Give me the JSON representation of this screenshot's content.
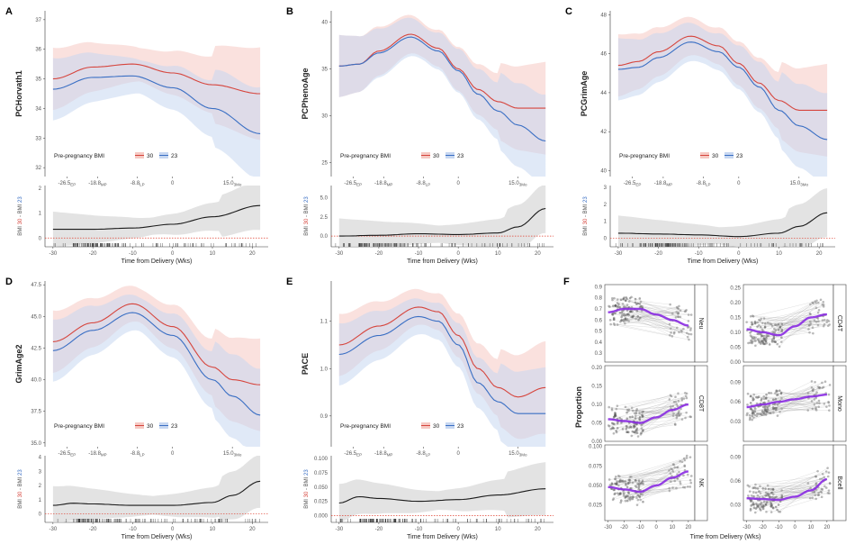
{
  "panels": {
    "A": {
      "label": "A",
      "ylabel": "PCHorvath1",
      "ylim": [
        31.7,
        37.3
      ],
      "yticks": [
        "32",
        "33",
        "34",
        "35",
        "36",
        "37"
      ],
      "diff_ylim": [
        -0.35,
        2.1
      ],
      "diff_yticks": [
        "0",
        "1",
        "2"
      ]
    },
    "B": {
      "label": "B",
      "ylabel": "PCPhenoAge",
      "ylim": [
        23.5,
        41.2
      ],
      "yticks": [
        "25",
        "30",
        "35",
        "40"
      ],
      "diff_ylim": [
        -1.4,
        6.6
      ],
      "diff_yticks": [
        "0.0",
        "2.5",
        "5.0"
      ]
    },
    "C": {
      "label": "C",
      "ylabel": "PCGrimAge",
      "ylim": [
        39.7,
        48.2
      ],
      "yticks": [
        "40",
        "42",
        "44",
        "46",
        "48"
      ],
      "diff_ylim": [
        -0.5,
        3.1
      ],
      "diff_yticks": [
        "0",
        "1",
        "2",
        "3"
      ]
    },
    "D": {
      "label": "D",
      "ylabel": "GrimAge2",
      "ylim": [
        34.7,
        47.8
      ],
      "yticks": [
        "35.0",
        "37.5",
        "40.0",
        "42.5",
        "45.0",
        "47.5"
      ],
      "diff_ylim": [
        -0.6,
        4.1
      ],
      "diff_yticks": [
        "0",
        "1",
        "2",
        "3",
        "4"
      ]
    },
    "E": {
      "label": "E",
      "ylabel": "PACE",
      "ylim": [
        0.835,
        1.185
      ],
      "yticks": [
        "0.9",
        "1.0",
        "1.1"
      ],
      "diff_ylim": [
        -0.012,
        0.105
      ],
      "diff_yticks": [
        "0.000",
        "0.025",
        "0.050",
        "0.075",
        "0.100"
      ]
    },
    "F": {
      "label": "F",
      "ylabel": "Proportion"
    }
  },
  "legend": {
    "title": "Pre-pregnancy BMI",
    "item1": "30",
    "item2": "23"
  },
  "diff_label": {
    "prefix": "BMI ",
    "n30": "30",
    "mid": " - BMI ",
    "n23": "23"
  },
  "xlabel": "Time from Delivery (Wks)",
  "top_xticks": [
    {
      "x": -26.5,
      "main": "-26.5",
      "sub": "EP"
    },
    {
      "x": -18.8,
      "main": "-18.8",
      "sub": "MP"
    },
    {
      "x": -8.8,
      "main": "-8.8",
      "sub": "LP"
    },
    {
      "x": 0,
      "main": "0",
      "sub": ""
    },
    {
      "x": 15.0,
      "main": "15.0",
      "sub": "3Mo"
    }
  ],
  "bottom_xticks": [
    "-30",
    "-20",
    "-10",
    "0",
    "10",
    "20"
  ],
  "f_xticks": [
    "-30",
    "-20",
    "-10",
    "0",
    "10",
    "20"
  ],
  "colors": {
    "bmi30": "#d6453d",
    "bmi23": "#3a6fc4",
    "band30": "#f6c9c3",
    "band23": "#c7d7f1",
    "diff": "#1a1a1a",
    "diffband": "#dcdcdc",
    "ref": "#e04030",
    "purple": "#8a2be2",
    "pointgray": "#777777"
  },
  "chart_data": [
    {
      "panel": "A",
      "type": "line",
      "x": [
        -30,
        -20,
        -10,
        0,
        10,
        22
      ],
      "series": [
        {
          "name": "30",
          "values": [
            35.0,
            35.4,
            35.5,
            35.2,
            34.8,
            34.5
          ]
        },
        {
          "name": "23",
          "values": [
            34.65,
            35.05,
            35.1,
            34.7,
            34.0,
            33.15
          ]
        }
      ],
      "diff": {
        "x": [
          -30,
          -20,
          -10,
          0,
          10,
          22
        ],
        "values": [
          0.35,
          0.35,
          0.4,
          0.55,
          0.85,
          1.3
        ]
      }
    },
    {
      "panel": "B",
      "type": "line",
      "x": [
        -30,
        -25,
        -20,
        -12,
        -5,
        0,
        5,
        10,
        15,
        22
      ],
      "series": [
        {
          "name": "30",
          "values": [
            35.3,
            35.5,
            36.9,
            38.7,
            37.2,
            35.0,
            32.8,
            31.5,
            30.8,
            30.8
          ]
        },
        {
          "name": "23",
          "values": [
            35.3,
            35.5,
            36.7,
            38.4,
            36.9,
            34.8,
            32.3,
            30.5,
            29.0,
            27.3
          ]
        }
      ],
      "diff": {
        "x": [
          -30,
          -20,
          -10,
          0,
          10,
          15,
          22
        ],
        "values": [
          0.0,
          0.1,
          0.3,
          0.2,
          0.4,
          1.2,
          3.6
        ]
      }
    },
    {
      "panel": "C",
      "type": "line",
      "x": [
        -30,
        -25,
        -20,
        -12,
        -5,
        0,
        5,
        10,
        15,
        22
      ],
      "series": [
        {
          "name": "30",
          "values": [
            45.4,
            45.6,
            46.1,
            46.9,
            46.4,
            45.5,
            44.5,
            43.6,
            43.1,
            43.1
          ]
        },
        {
          "name": "23",
          "values": [
            45.2,
            45.3,
            45.8,
            46.6,
            46.1,
            45.3,
            44.3,
            43.1,
            42.3,
            41.6
          ]
        }
      ],
      "diff": {
        "x": [
          -30,
          -20,
          -10,
          0,
          10,
          15,
          22
        ],
        "values": [
          0.3,
          0.25,
          0.2,
          0.1,
          0.3,
          0.7,
          1.5
        ]
      }
    },
    {
      "panel": "D",
      "type": "line",
      "x": [
        -30,
        -20,
        -10,
        0,
        10,
        15,
        22
      ],
      "series": [
        {
          "name": "30",
          "values": [
            43.0,
            44.5,
            46.0,
            44.2,
            41.0,
            40.0,
            39.6
          ]
        },
        {
          "name": "23",
          "values": [
            42.3,
            43.9,
            45.3,
            43.5,
            40.0,
            38.7,
            37.2
          ]
        }
      ],
      "diff": {
        "x": [
          -30,
          -25,
          -20,
          -10,
          0,
          10,
          15,
          22
        ],
        "values": [
          0.6,
          0.75,
          0.7,
          0.6,
          0.6,
          0.8,
          1.3,
          2.3
        ]
      }
    },
    {
      "panel": "E",
      "type": "line",
      "x": [
        -30,
        -20,
        -10,
        -5,
        0,
        5,
        10,
        15,
        22
      ],
      "series": [
        {
          "name": "30",
          "values": [
            1.05,
            1.09,
            1.13,
            1.12,
            1.07,
            1.0,
            0.96,
            0.94,
            0.96
          ]
        },
        {
          "name": "23",
          "values": [
            1.03,
            1.07,
            1.11,
            1.1,
            1.05,
            0.97,
            0.93,
            0.905,
            0.905
          ]
        }
      ],
      "diff": {
        "x": [
          -30,
          -25,
          -20,
          -10,
          0,
          10,
          22
        ],
        "values": [
          0.022,
          0.033,
          0.03,
          0.025,
          0.028,
          0.036,
          0.047
        ]
      }
    },
    {
      "panel": "F",
      "type": "scatter",
      "x_range": [
        -32,
        24
      ],
      "facets": [
        {
          "name": "Neu",
          "ylim": [
            0.22,
            0.92
          ],
          "yticks": [
            "0.3",
            "0.4",
            "0.5",
            "0.6",
            "0.7",
            "0.8",
            "0.9"
          ],
          "trend_x": [
            -30,
            -20,
            -10,
            0,
            10,
            20
          ],
          "trend": [
            0.67,
            0.7,
            0.7,
            0.65,
            0.6,
            0.55
          ]
        },
        {
          "name": "CD4T",
          "ylim": [
            0.0,
            0.26
          ],
          "yticks": [
            "0.00",
            "0.05",
            "0.10",
            "0.15",
            "0.20",
            "0.25"
          ],
          "trend_x": [
            -30,
            -20,
            -10,
            0,
            10,
            20
          ],
          "trend": [
            0.11,
            0.1,
            0.09,
            0.12,
            0.15,
            0.16
          ]
        },
        {
          "name": "CD8T",
          "ylim": [
            0.0,
            0.205
          ],
          "yticks": [
            "0.00",
            "0.05",
            "0.10",
            "0.15",
            "0.20"
          ],
          "trend_x": [
            -30,
            -20,
            -10,
            0,
            10,
            20
          ],
          "trend": [
            0.06,
            0.055,
            0.05,
            0.065,
            0.085,
            0.1
          ]
        },
        {
          "name": "Mono",
          "ylim": [
            0.0,
            0.115
          ],
          "yticks": [
            "0.03",
            "0.06",
            "0.09"
          ],
          "trend_x": [
            -30,
            -20,
            -10,
            0,
            10,
            20
          ],
          "trend": [
            0.052,
            0.056,
            0.06,
            0.064,
            0.068,
            0.071
          ]
        },
        {
          "name": "NK",
          "ylim": [
            0.005,
            0.102
          ],
          "yticks": [
            "0.025",
            "0.050",
            "0.075",
            "0.100"
          ],
          "trend_x": [
            -30,
            -20,
            -10,
            0,
            10,
            20
          ],
          "trend": [
            0.048,
            0.045,
            0.042,
            0.05,
            0.06,
            0.068
          ]
        },
        {
          "name": "Bcell",
          "ylim": [
            0.01,
            0.105
          ],
          "yticks": [
            "0.03",
            "0.06",
            "0.09"
          ],
          "trend_x": [
            -30,
            -20,
            -10,
            0,
            10,
            20
          ],
          "trend": [
            0.038,
            0.037,
            0.036,
            0.04,
            0.048,
            0.062
          ]
        }
      ]
    }
  ]
}
